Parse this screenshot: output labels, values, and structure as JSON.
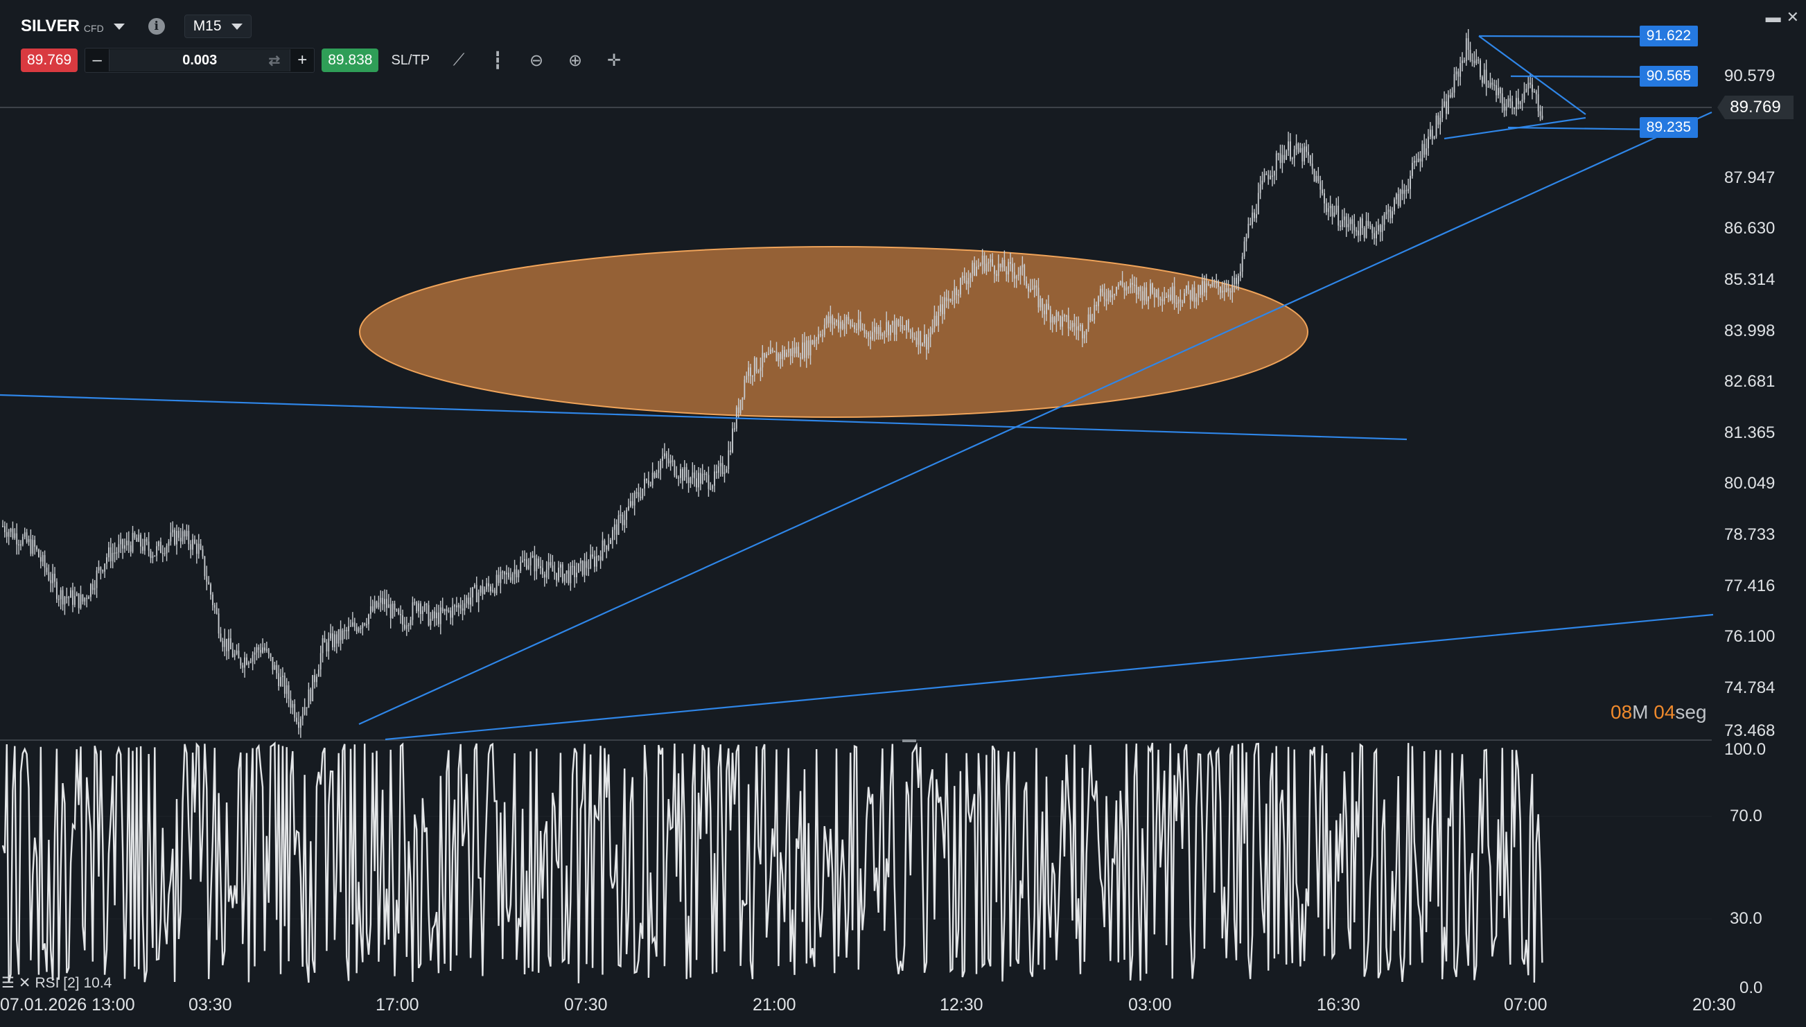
{
  "header": {
    "symbol": "SILVER",
    "symbol_type": "CFD",
    "timeframe": "M15",
    "sell_price": "89.769",
    "buy_price": "89.838",
    "quantity": "0.003",
    "minus_label": "–",
    "plus_label": "+",
    "sltp_label": "SL/TP"
  },
  "window_controls": {
    "minimize": "▬",
    "close": "✕"
  },
  "price_axis": {
    "labels": [
      "90.579",
      "87.947",
      "86.630",
      "85.314",
      "83.998",
      "82.681",
      "81.365",
      "80.049",
      "78.733",
      "77.416",
      "76.100",
      "74.784",
      "73.468"
    ],
    "current_price": "89.769",
    "line_price_tags": [
      "91.622",
      "90.565",
      "89.235"
    ]
  },
  "rsi_axis": {
    "labels": [
      "100.0",
      "70.0",
      "30.0",
      "0.0"
    ]
  },
  "rsi_indicator": {
    "label": "RSI [2] 10.4"
  },
  "candle_timer": {
    "minutes": "08",
    "min_unit": "M",
    "seconds": "04",
    "sec_unit": "seg"
  },
  "time_axis": {
    "labels": [
      "07.01.2026 13:00",
      "03:30",
      "17:00",
      "07:30",
      "21:00",
      "12:30",
      "03:00",
      "16:30",
      "07:00",
      "20:30"
    ]
  },
  "colors": {
    "background": "#161b21",
    "candles": "#c9cdd1",
    "trendline": "#2f86e8",
    "highlight_ellipse_fill": "#c07a3e",
    "highlight_ellipse_stroke": "#f0a45a",
    "sell": "#d93a40",
    "buy": "#2f9e57",
    "tag_blue": "#2579e0"
  },
  "chart_data": {
    "type": "candlestick",
    "title": "SILVER CFD M15",
    "ylim": [
      73.2,
      92.0
    ],
    "close_path": [
      [
        0,
        78.8
      ],
      [
        16,
        78.2
      ],
      [
        28,
        77.0
      ],
      [
        40,
        76.8
      ],
      [
        52,
        78.0
      ],
      [
        66,
        78.4
      ],
      [
        76,
        78.1
      ],
      [
        88,
        78.6
      ],
      [
        98,
        78.2
      ],
      [
        110,
        75.8
      ],
      [
        118,
        75.2
      ],
      [
        130,
        75.6
      ],
      [
        140,
        74.6
      ],
      [
        148,
        73.7
      ],
      [
        154,
        74.4
      ],
      [
        160,
        75.6
      ],
      [
        170,
        75.9
      ],
      [
        180,
        76.3
      ],
      [
        190,
        76.8
      ],
      [
        200,
        76.2
      ],
      [
        208,
        76.8
      ],
      [
        214,
        76.3
      ],
      [
        226,
        76.6
      ],
      [
        236,
        77.0
      ],
      [
        248,
        77.3
      ],
      [
        262,
        77.9
      ],
      [
        274,
        77.6
      ],
      [
        284,
        77.5
      ],
      [
        296,
        77.9
      ],
      [
        310,
        79.0
      ],
      [
        320,
        79.8
      ],
      [
        330,
        80.6
      ],
      [
        342,
        80.1
      ],
      [
        356,
        80.0
      ],
      [
        362,
        80.5
      ],
      [
        366,
        81.5
      ],
      [
        372,
        82.9
      ],
      [
        382,
        83.2
      ],
      [
        392,
        83.4
      ],
      [
        402,
        83.5
      ],
      [
        412,
        84.2
      ],
      [
        422,
        84.2
      ],
      [
        432,
        83.9
      ],
      [
        442,
        84.1
      ],
      [
        452,
        84.0
      ],
      [
        462,
        83.7
      ],
      [
        470,
        84.6
      ],
      [
        480,
        85.3
      ],
      [
        490,
        85.8
      ],
      [
        500,
        85.6
      ],
      [
        510,
        85.5
      ],
      [
        520,
        84.6
      ],
      [
        530,
        84.2
      ],
      [
        540,
        84.0
      ],
      [
        548,
        84.8
      ],
      [
        558,
        85.2
      ],
      [
        568,
        85.0
      ],
      [
        578,
        85.0
      ],
      [
        590,
        84.9
      ],
      [
        604,
        85.1
      ],
      [
        618,
        85.2
      ],
      [
        622,
        86.5
      ],
      [
        632,
        88.1
      ],
      [
        642,
        88.8
      ],
      [
        652,
        88.6
      ],
      [
        662,
        87.3
      ],
      [
        672,
        86.8
      ],
      [
        686,
        86.6
      ],
      [
        700,
        87.6
      ],
      [
        712,
        89.0
      ],
      [
        722,
        89.9
      ],
      [
        732,
        91.5
      ],
      [
        742,
        90.6
      ],
      [
        752,
        89.9
      ],
      [
        764,
        90.4
      ],
      [
        770,
        89.769
      ]
    ],
    "rsi_period": 2,
    "rsi_last": 10.4,
    "rsi_ylim": [
      0,
      100
    ],
    "rsi_levels": [
      70,
      30
    ]
  }
}
